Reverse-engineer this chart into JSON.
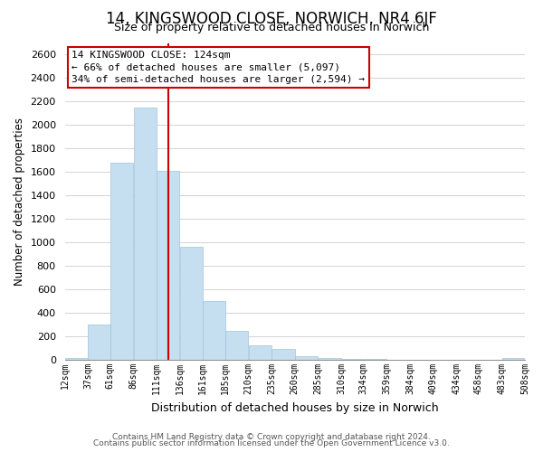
{
  "title": "14, KINGSWOOD CLOSE, NORWICH, NR4 6JF",
  "subtitle": "Size of property relative to detached houses in Norwich",
  "xlabel": "Distribution of detached houses by size in Norwich",
  "ylabel": "Number of detached properties",
  "bar_left_edges": [
    12,
    37,
    61,
    86,
    111,
    136,
    161,
    185,
    210,
    235,
    260,
    285,
    310,
    334,
    359,
    384,
    409,
    434,
    458,
    483
  ],
  "bar_heights": [
    20,
    300,
    1680,
    2150,
    1610,
    960,
    505,
    245,
    125,
    95,
    30,
    15,
    8,
    5,
    3,
    2,
    2,
    2,
    2,
    20
  ],
  "bar_widths": [
    25,
    24,
    25,
    25,
    25,
    25,
    24,
    25,
    25,
    25,
    25,
    25,
    24,
    25,
    25,
    25,
    25,
    24,
    25,
    25
  ],
  "bar_color": "#c6dff0",
  "bar_edgecolor": "#a0c4dc",
  "vline_x": 124,
  "vline_color": "#cc0000",
  "annotation_line1": "14 KINGSWOOD CLOSE: 124sqm",
  "annotation_line2": "← 66% of detached houses are smaller (5,097)",
  "annotation_line3": "34% of semi-detached houses are larger (2,594) →",
  "tick_labels": [
    "12sqm",
    "37sqm",
    "61sqm",
    "86sqm",
    "111sqm",
    "136sqm",
    "161sqm",
    "185sqm",
    "210sqm",
    "235sqm",
    "260sqm",
    "285sqm",
    "310sqm",
    "334sqm",
    "359sqm",
    "384sqm",
    "409sqm",
    "434sqm",
    "458sqm",
    "483sqm",
    "508sqm"
  ],
  "ylim": [
    0,
    2700
  ],
  "yticks": [
    0,
    200,
    400,
    600,
    800,
    1000,
    1200,
    1400,
    1600,
    1800,
    2000,
    2200,
    2400,
    2600
  ],
  "footnote1": "Contains HM Land Registry data © Crown copyright and database right 2024.",
  "footnote2": "Contains public sector information licensed under the Open Government Licence v3.0.",
  "background_color": "#ffffff",
  "grid_color": "#cccccc",
  "title_fontsize": 12,
  "subtitle_fontsize": 9,
  "xlabel_fontsize": 9,
  "ylabel_fontsize": 8.5,
  "tick_fontsize": 7,
  "annot_fontsize": 8,
  "footnote_fontsize": 6.5
}
